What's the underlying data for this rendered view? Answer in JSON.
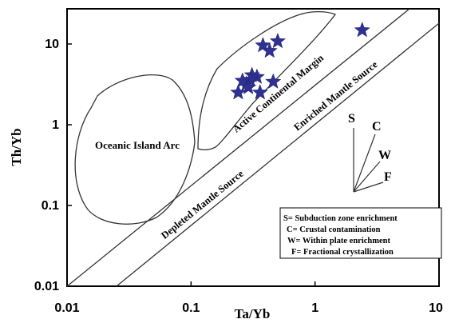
{
  "chart_data": {
    "type": "scatter",
    "title": "",
    "xlabel": "Ta/Yb",
    "ylabel": "Th/Yb",
    "x_scale": "log",
    "y_scale": "log",
    "xlim": [
      0.01,
      10
    ],
    "ylim": [
      0.01,
      30
    ],
    "x_tick_labels": [
      "0.01",
      "0.1",
      "1",
      "10"
    ],
    "y_tick_labels": [
      "0.01",
      "0.1",
      "1",
      "10"
    ],
    "x_ticks": [
      0.01,
      0.1,
      1,
      10
    ],
    "y_ticks": [
      0.01,
      0.1,
      1,
      10
    ],
    "grid": false,
    "series": [
      {
        "marker": "star",
        "color": "#2e3192",
        "points": [
          {
            "x": 0.38,
            "y": 9.6
          },
          {
            "x": 0.5,
            "y": 10.8
          },
          {
            "x": 0.43,
            "y": 8.2
          },
          {
            "x": 2.4,
            "y": 14.8
          },
          {
            "x": 0.28,
            "y": 3.2
          },
          {
            "x": 0.31,
            "y": 4.1
          },
          {
            "x": 0.34,
            "y": 3.9
          },
          {
            "x": 0.3,
            "y": 3.6
          },
          {
            "x": 0.26,
            "y": 3.5
          },
          {
            "x": 0.29,
            "y": 2.9
          },
          {
            "x": 0.24,
            "y": 2.5
          },
          {
            "x": 0.36,
            "y": 2.5
          },
          {
            "x": 0.46,
            "y": 3.4
          }
        ]
      }
    ],
    "field_labels": [
      {
        "text": "Oceanic Island Arc"
      },
      {
        "text": "Active Continental Margin"
      },
      {
        "text": "Enriched Mantle Source"
      },
      {
        "text": "Depleted Mantle Source"
      }
    ],
    "vector_labels": [
      "S",
      "C",
      "W",
      "F"
    ],
    "legend": {
      "placement": "bottom-right",
      "entries": [
        "S= Subduction zone enrichment",
        "C= Crustal contamination",
        "W=  Within plate enrichment",
        "F= Fractional crystallization"
      ]
    }
  }
}
